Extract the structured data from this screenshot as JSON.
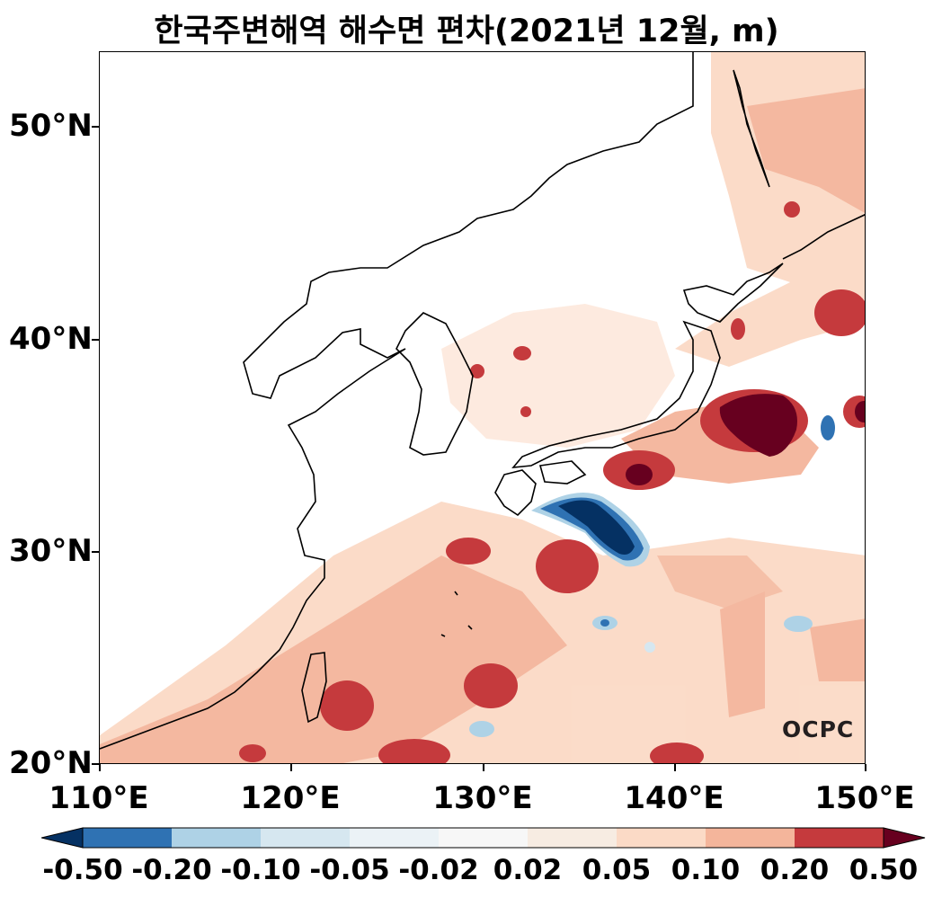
{
  "title": "한국주변해역 해수면 편차(2021년 12월, m)",
  "y_axis": {
    "labels": [
      "50°N",
      "40°N",
      "30°N",
      "20°N"
    ],
    "values": [
      50,
      40,
      30,
      20
    ],
    "range": [
      20,
      53.5
    ]
  },
  "x_axis": {
    "labels": [
      "110°E",
      "120°E",
      "130°E",
      "140°E",
      "150°E"
    ],
    "values": [
      110,
      120,
      130,
      140,
      150
    ],
    "range": [
      110,
      150
    ]
  },
  "colorbar": {
    "labels": [
      "-0.50",
      "-0.20",
      "-0.10",
      "-0.05",
      "-0.02",
      "0.02",
      "0.05",
      "0.10",
      "0.20",
      "0.50"
    ],
    "colors": [
      "#2f72b3",
      "#aed2e6",
      "#d6e7f0",
      "#ebf2f6",
      "#f7f7f7",
      "#f7ece2",
      "#fbdac6",
      "#f4b59b",
      "#c53a3d"
    ],
    "under_color": "#053163",
    "over_color": "#67001f"
  },
  "logo": "OCPC"
}
